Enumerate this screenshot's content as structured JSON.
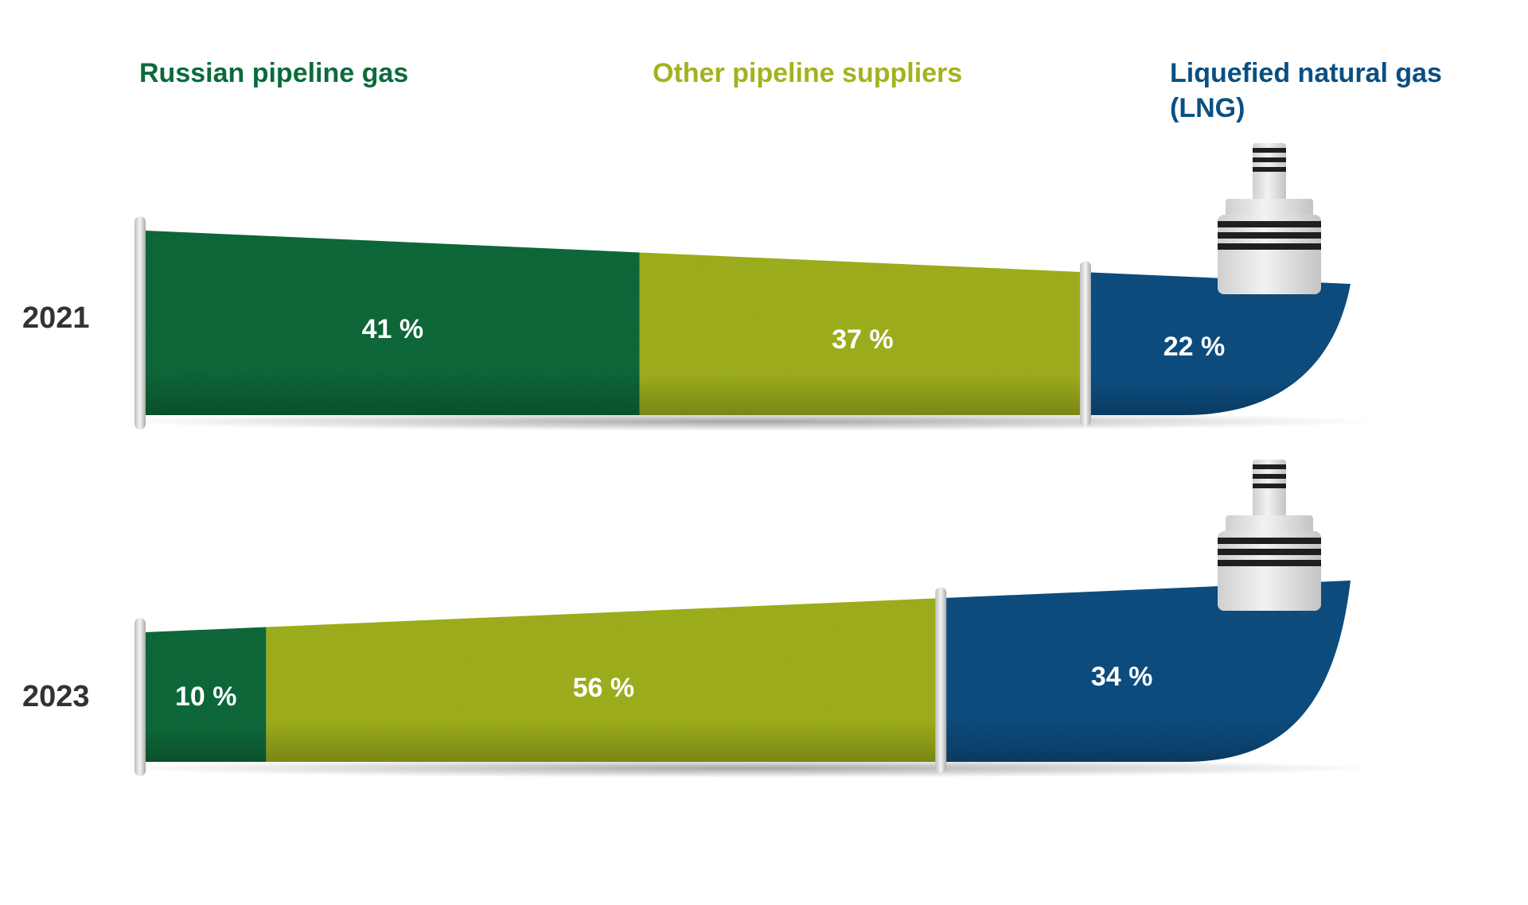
{
  "chart_data": {
    "type": "bar",
    "stacked": true,
    "orientation": "horizontal",
    "categories": [
      "2021",
      "2023"
    ],
    "series": [
      {
        "name": "Russian pipeline gas",
        "values": [
          41,
          10
        ],
        "labels": [
          "41 %",
          "10 %"
        ],
        "color": "#0a6b3b"
      },
      {
        "name": "Other pipeline suppliers",
        "values": [
          37,
          56
        ],
        "labels": [
          "37 %",
          "56 %"
        ],
        "color": "#a2b31e"
      },
      {
        "name": "Liquefied natural gas (LNG)",
        "name_lines": [
          "Liquefied natural gas",
          "(LNG)"
        ],
        "values": [
          22,
          34
        ],
        "labels": [
          "22 %",
          "34 %"
        ],
        "color": "#0a4f82"
      }
    ],
    "legend": "top",
    "grid": false,
    "xlim": [
      0,
      100
    ]
  }
}
